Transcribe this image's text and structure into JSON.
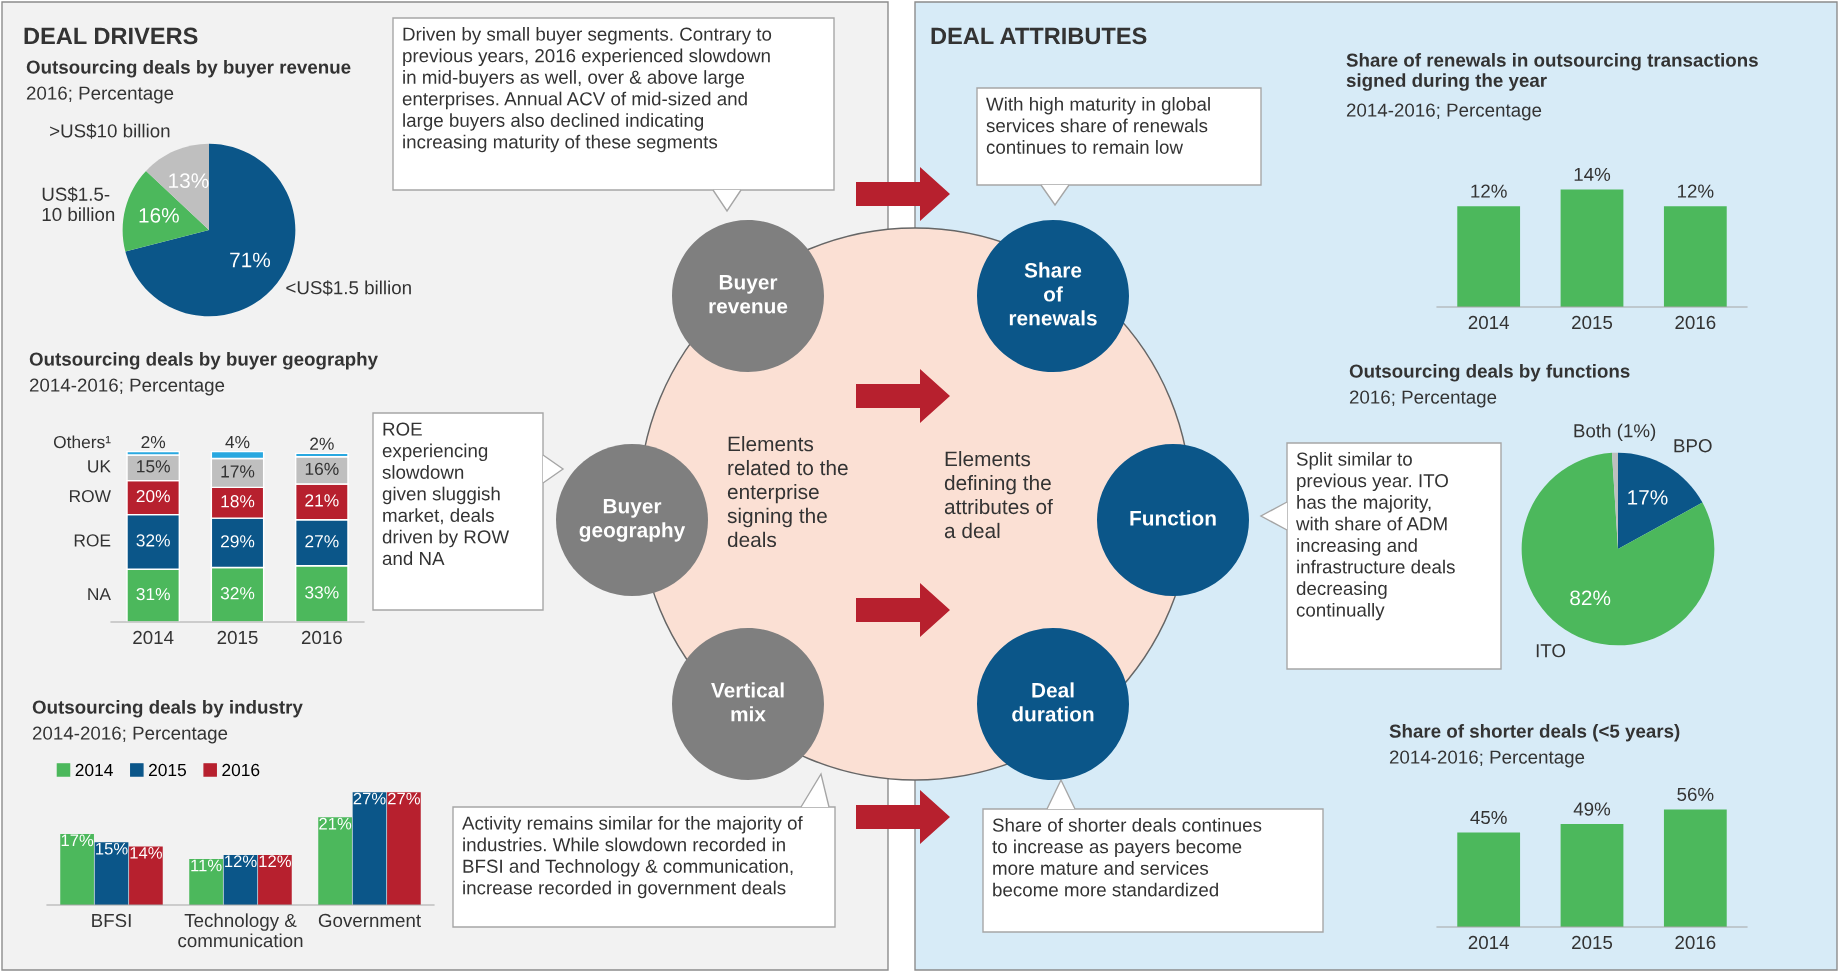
{
  "chart_data": [
    {
      "type": "other",
      "annotations": [
        "DEAL DRIVERS",
        "DEAL ATTRIBUTES",
        "Driven by small buyer segments. Contrary to\nprevious years, 2016 experienced slowdown\nin mid-buyers as well, over & above large\nenterprises. Annual ACV of mid-sized and\nlarge buyers also declined indicating\nincreasing maturity of these segments",
        "ROE\nexperiencing\nslowdown\ngiven sluggish\nmarket, deals\ndriven by ROW\nand NA",
        "Activity remains similar for the majority of\nindustries. While slowdown recorded in\nBFSI and Technology & communication,\nincrease recorded in government deals",
        "With high maturity in global\nservices share of renewals\ncontinues to remain low",
        "Split similar to\nprevious year. ITO\nhas the majority,\nwith share of ADM\nincreasing and\ninfrastructure deals\ndecreasing\ncontinually",
        "Share of shorter deals continues\nto increase as payers become\nmore mature and services\nbecome more standardized",
        "Buyer\nrevenue",
        "Buyer\ngeography",
        "Vertical\nmix",
        "Share\nof\nrenewals",
        "Function",
        "Deal\nduration",
        "Elements\nrelated to the\nenterprise\nsigning the\ndeals",
        "Elements\ndefining the\nattributes of\na deal"
      ]
    },
    {
      "type": "pie",
      "title": "Outsourcing deals by buyer revenue",
      "subtitle": "2016; Percentage",
      "categories": [
        "<US$1.5 billion",
        "US$1.5-\n10 billion",
        ">US$10 billion"
      ],
      "values": [
        71,
        16,
        13
      ],
      "colors": [
        "#0b5689",
        "#4cb85c",
        "#bfbfbf"
      ],
      "value_labels": [
        "71%",
        "16%",
        "13%"
      ]
    },
    {
      "type": "bar",
      "stacked": true,
      "tick_labels": "x",
      "title": "Outsourcing deals by buyer geography",
      "subtitle": "2014-2016; Percentage",
      "categories": [
        "2014",
        "2015",
        "2016"
      ],
      "series": [
        {
          "name": "NA",
          "color": "#4cb85c",
          "values": [
            31,
            32,
            33
          ],
          "value_labels": [
            "31%",
            "32%",
            "33%"
          ]
        },
        {
          "name": "ROE",
          "color": "#0b5689",
          "values": [
            32,
            29,
            27
          ],
          "value_labels": [
            "32%",
            "29%",
            "27%"
          ]
        },
        {
          "name": "ROW",
          "color": "#b7202e",
          "values": [
            20,
            18,
            21
          ],
          "value_labels": [
            "20%",
            "18%",
            "21%"
          ]
        },
        {
          "name": "UK",
          "color": "#bfbfbf",
          "values": [
            15,
            17,
            16
          ],
          "value_labels": [
            "15%",
            "17%",
            "16%"
          ]
        },
        {
          "name": "Others¹",
          "color": "#29a8e0",
          "values": [
            2,
            4,
            2
          ],
          "value_labels": [
            "2%",
            "4%",
            "2%"
          ]
        }
      ]
    },
    {
      "type": "bar",
      "tick_labels": "x",
      "legend": "top left",
      "title": "Outsourcing deals by industry",
      "subtitle": "2014-2016; Percentage",
      "categories": [
        "BFSI",
        "Technology &\ncommunication",
        "Government"
      ],
      "series": [
        {
          "name": "2014",
          "color": "#4cb85c",
          "values": [
            17,
            11,
            21
          ],
          "value_labels": [
            "17%",
            "11%",
            "21%"
          ]
        },
        {
          "name": "2015",
          "color": "#0b5689",
          "values": [
            15,
            12,
            27
          ],
          "value_labels": [
            "15%",
            "12%",
            "27%"
          ]
        },
        {
          "name": "2016",
          "color": "#b7202e",
          "values": [
            14,
            12,
            27
          ],
          "value_labels": [
            "14%",
            "12%",
            "27%"
          ]
        }
      ]
    },
    {
      "type": "bar",
      "tick_labels": "x",
      "title": "Share of renewals in outsourcing transactions\nsigned during the year",
      "subtitle": "2014-2016; Percentage",
      "categories": [
        "2014",
        "2015",
        "2016"
      ],
      "values": [
        12,
        14,
        12
      ],
      "color": "#4cb85c",
      "value_labels": [
        "12%",
        "14%",
        "12%"
      ]
    },
    {
      "type": "pie",
      "title": "Outsourcing deals by functions",
      "subtitle": "2016; Percentage",
      "categories": [
        "BPO",
        "ITO",
        "Both (1%)"
      ],
      "values": [
        17,
        82,
        1
      ],
      "colors": [
        "#0b5689",
        "#4cb85c",
        "#bfbfbf"
      ],
      "value_labels": [
        "17%",
        "82%",
        null
      ]
    },
    {
      "type": "bar",
      "tick_labels": "x",
      "title": "Share of shorter deals (<5 years)",
      "subtitle": "2014-2016; Percentage",
      "categories": [
        "2014",
        "2015",
        "2016"
      ],
      "values": [
        45,
        49,
        56
      ],
      "color": "#4cb85c",
      "value_labels": [
        "45%",
        "49%",
        "56%"
      ]
    }
  ]
}
